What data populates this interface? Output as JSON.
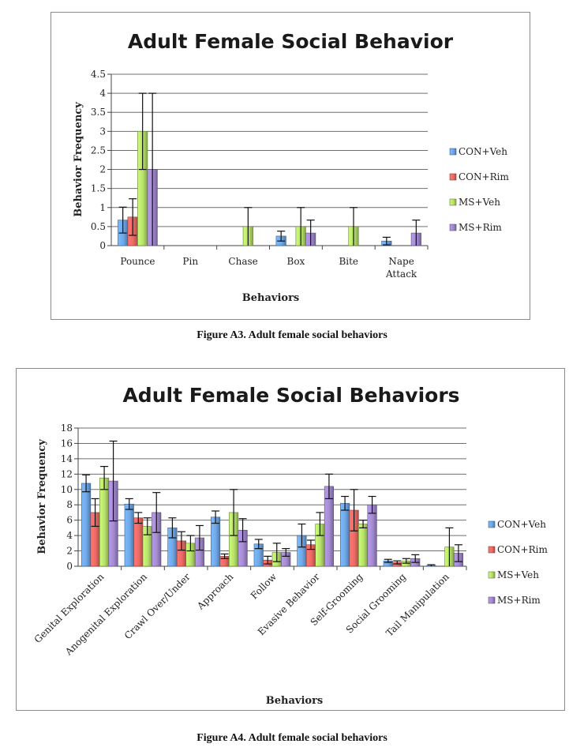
{
  "chart_data": [
    {
      "type": "bar",
      "title": "Adult Female Social Behavior",
      "xlabel": "Behaviors",
      "ylabel": "Behavior Frequency",
      "ylim": [
        0,
        4.5
      ],
      "yticks": [
        "0",
        "0.5",
        "1",
        "1.5",
        "2",
        "2.5",
        "3",
        "3.5",
        "4",
        "4.5"
      ],
      "categories": [
        "Pounce",
        "Pin",
        "Chase",
        "Box",
        "Bite",
        "Nape\nAttack"
      ],
      "legend_position": "right",
      "series": [
        {
          "name": "CON+Veh",
          "color": "#6fa8e8",
          "values": [
            0.67,
            0,
            0,
            0.25,
            0,
            0.12
          ],
          "errors": [
            0.34,
            0,
            0,
            0.13,
            0,
            0.1
          ]
        },
        {
          "name": "CON+Rim",
          "color": "#ee6b66",
          "values": [
            0.75,
            0,
            0,
            0,
            0,
            0
          ],
          "errors": [
            0.48,
            0,
            0,
            0,
            0,
            0
          ]
        },
        {
          "name": "MS+Veh",
          "color": "#b7e26a",
          "values": [
            3.0,
            0,
            0.5,
            0.5,
            0.5,
            0
          ],
          "errors": [
            1.0,
            0,
            0.5,
            0.5,
            0.5,
            0
          ]
        },
        {
          "name": "MS+Rim",
          "color": "#a48bd2",
          "values": [
            2.0,
            0,
            0,
            0.33,
            0,
            0.33
          ],
          "errors": [
            2.0,
            0,
            0,
            0.34,
            0,
            0.34
          ]
        }
      ]
    },
    {
      "type": "bar",
      "title": "Adult Female Social Behaviors",
      "xlabel": "Behaviors",
      "ylabel": "Behavior Frequency",
      "ylim": [
        0,
        18
      ],
      "yticks": [
        "0",
        "2",
        "4",
        "6",
        "8",
        "10",
        "12",
        "14",
        "16",
        "18"
      ],
      "categories": [
        "Genital Exploration",
        "Anogenital Exploration",
        "Crawl Over/Under",
        "Approach",
        "Follow",
        "Evasive Behavior",
        "Self-Grooming",
        "Social Grooming",
        "Tail Manipulation"
      ],
      "legend_position": "right",
      "series": [
        {
          "name": "CON+Veh",
          "color": "#6fa8e8",
          "values": [
            10.8,
            8.1,
            5.0,
            6.4,
            2.9,
            4.0,
            8.2,
            0.7,
            0.1
          ],
          "errors": [
            1.1,
            0.7,
            1.3,
            0.8,
            0.6,
            1.5,
            0.9,
            0.2,
            0.1
          ]
        },
        {
          "name": "CON+Rim",
          "color": "#ee6b66",
          "values": [
            7.0,
            6.3,
            3.3,
            1.3,
            0.8,
            2.8,
            7.3,
            0.5,
            0.0
          ],
          "errors": [
            1.8,
            0.7,
            1.2,
            0.3,
            0.5,
            0.6,
            2.7,
            0.2,
            0
          ]
        },
        {
          "name": "MS+Veh",
          "color": "#b7e26a",
          "values": [
            11.5,
            5.2,
            3.0,
            7.0,
            1.8,
            5.5,
            5.5,
            0.7,
            2.5
          ],
          "errors": [
            1.5,
            1.1,
            1.0,
            3.0,
            1.2,
            1.5,
            0.5,
            0.3,
            2.5
          ]
        },
        {
          "name": "MS+Rim",
          "color": "#a48bd2",
          "values": [
            11.1,
            7.0,
            3.7,
            4.7,
            1.8,
            10.4,
            8.0,
            1.0,
            1.7
          ],
          "errors": [
            5.2,
            2.6,
            1.6,
            1.5,
            0.5,
            1.6,
            1.1,
            0.5,
            1.1
          ]
        }
      ]
    }
  ],
  "captions": {
    "figure_a3": "Figure A3.  Adult female social behaviors",
    "figure_a4": "Figure A4.  Adult female social behaviors"
  }
}
